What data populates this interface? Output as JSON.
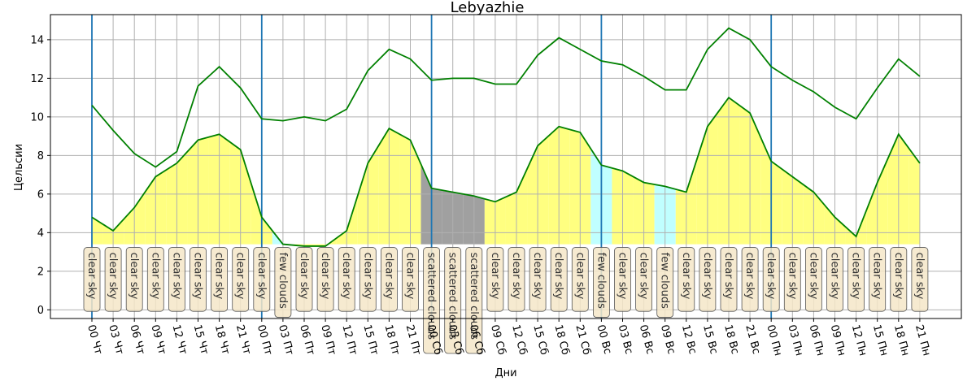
{
  "chart_data": {
    "type": "line",
    "title": "Lebyazhie",
    "xlabel": "Дни",
    "ylabel": "Цельсии",
    "ylim": [
      -0.45,
      15.3
    ],
    "yticks": [
      0,
      2,
      4,
      6,
      8,
      10,
      12,
      14
    ],
    "grid": true,
    "categories": [
      "00 Чт",
      "03 Чт",
      "06 Чт",
      "09 Чт",
      "12 Чт",
      "15 Чт",
      "18 Чт",
      "21 Чт",
      "00 Пт",
      "03 Пт",
      "06 Пт",
      "09 Пт",
      "12 Пт",
      "15 Пт",
      "18 Пт",
      "21 Пт",
      "00 Сб",
      "03 Сб",
      "06 Сб",
      "09 Сб",
      "12 Сб",
      "15 Сб",
      "18 Сб",
      "21 Сб",
      "00 Вс",
      "03 Вс",
      "06 Вс",
      "09 Вс",
      "12 Вс",
      "15 Вс",
      "18 Вс",
      "21 Вс",
      "00 Пн",
      "03 Пн",
      "06 Пн",
      "09 Пн",
      "12 Пн",
      "15 Пн",
      "18 Пн",
      "21 Пн"
    ],
    "day_starts": [
      0,
      8,
      16,
      24,
      32
    ],
    "series": [
      {
        "values": [
          10.6,
          9.3,
          8.1,
          7.4,
          8.2,
          11.6,
          12.6,
          11.5,
          9.9,
          9.8,
          10.0,
          9.8,
          10.4,
          12.4,
          13.5,
          13.0,
          11.9,
          12.0,
          12.0,
          11.7,
          11.7,
          13.2,
          14.1,
          13.5,
          12.9,
          12.7,
          12.1,
          11.4,
          11.4,
          13.5,
          14.6,
          14.0,
          12.6,
          11.9,
          11.3,
          10.5,
          9.9,
          11.5,
          13.0,
          12.1
        ]
      },
      {
        "values": [
          4.8,
          4.1,
          5.3,
          6.9,
          7.6,
          8.8,
          9.1,
          8.3,
          4.8,
          3.4,
          3.3,
          3.3,
          4.1,
          7.6,
          9.4,
          8.8,
          6.3,
          6.1,
          5.9,
          5.6,
          6.1,
          8.5,
          9.5,
          9.2,
          7.5,
          7.2,
          6.6,
          6.4,
          6.1,
          9.5,
          11.0,
          10.2,
          7.7,
          6.9,
          6.1,
          4.8,
          3.8,
          6.6,
          9.1,
          7.6
        ]
      }
    ],
    "conditions": [
      "clear sky",
      "clear sky",
      "clear sky",
      "clear sky",
      "clear sky",
      "clear sky",
      "clear sky",
      "clear sky",
      "clear sky",
      "few clouds",
      "clear sky",
      "clear sky",
      "clear sky",
      "clear sky",
      "clear sky",
      "clear sky",
      "scattered clouds",
      "scattered clouds",
      "scattered clouds",
      "clear sky",
      "clear sky",
      "clear sky",
      "clear sky",
      "clear sky",
      "few clouds",
      "clear sky",
      "clear sky",
      "few clouds",
      "clear sky",
      "clear sky",
      "clear sky",
      "clear sky",
      "clear sky",
      "clear sky",
      "clear sky",
      "clear sky",
      "clear sky",
      "clear sky",
      "clear sky",
      "clear sky"
    ],
    "condition_colors": {
      "clear sky": "#ffff80",
      "few clouds": "#c0ffff",
      "scattered clouds": "#a0a0a0"
    },
    "line_color": "#008000",
    "day_line_color": "#1f77b4",
    "label_box_color": "#f5e6c8"
  }
}
